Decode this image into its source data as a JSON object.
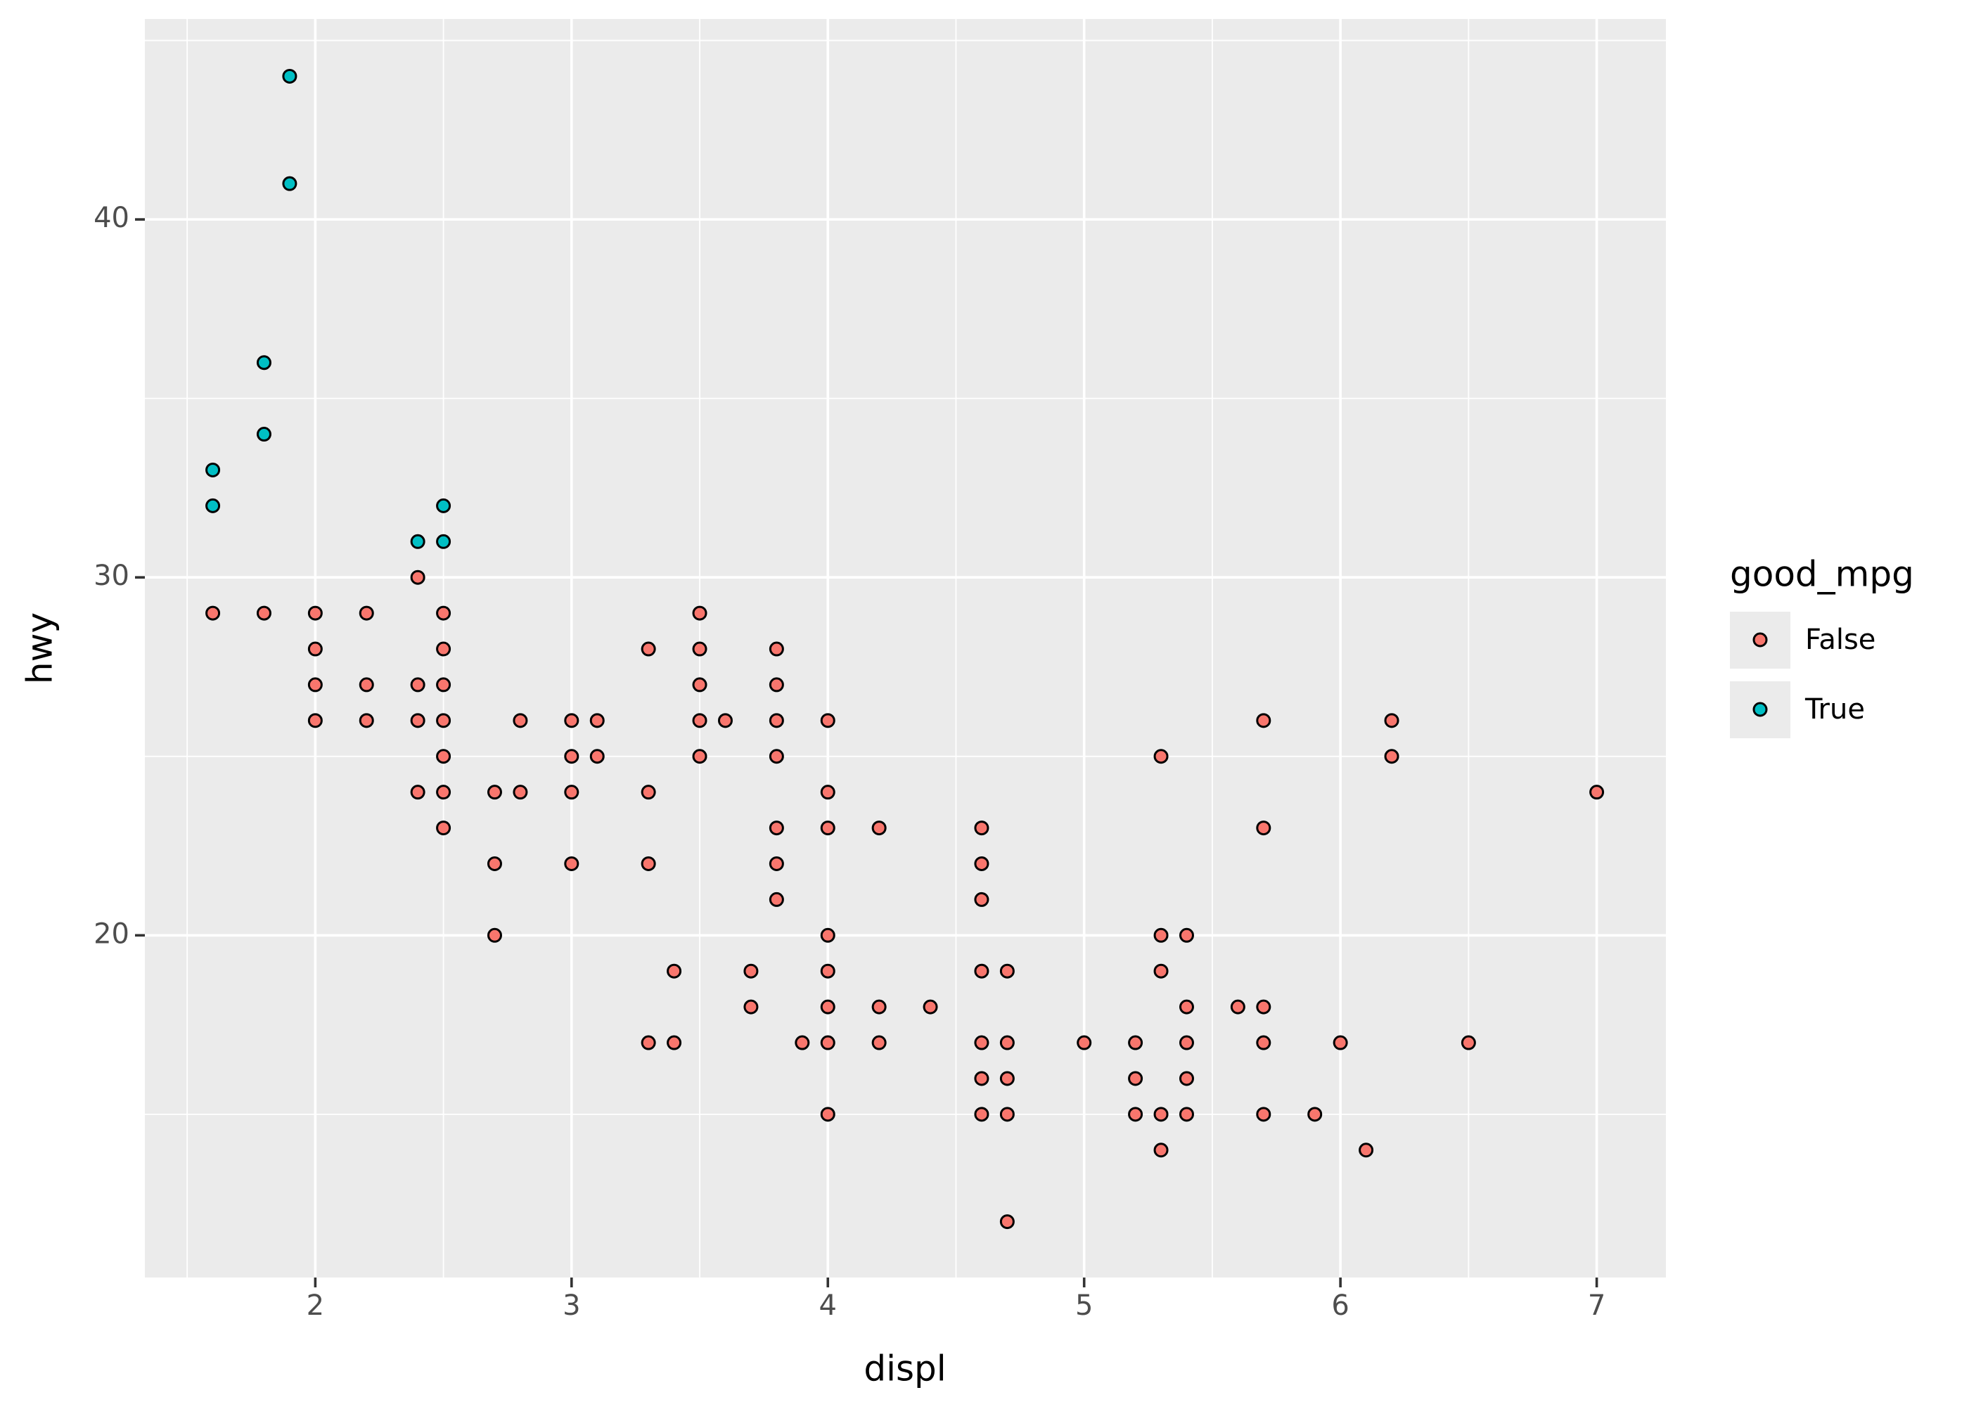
{
  "chart_data": {
    "type": "scatter",
    "x_label": "displ",
    "y_label": "hwy",
    "legend_title": "good_mpg",
    "xlim": [
      1.335,
      7.27
    ],
    "ylim": [
      10.44,
      45.6
    ],
    "xticks": [
      2,
      3,
      4,
      5,
      6,
      7
    ],
    "yticks": [
      20,
      30,
      40
    ],
    "minor_xticks": [
      1.5,
      2.5,
      3.5,
      4.5,
      5.5,
      6.5
    ],
    "minor_yticks": [
      15,
      25,
      35,
      45
    ],
    "grid": true,
    "legend": "right",
    "series": [
      {
        "name": "False",
        "color": "#F8766D",
        "x": [
          1.6,
          1.8,
          2.0,
          2.0,
          2.0,
          2.0,
          2.2,
          2.2,
          2.2,
          2.4,
          2.4,
          2.4,
          2.4,
          2.5,
          2.5,
          2.5,
          2.5,
          2.5,
          2.5,
          2.5,
          2.7,
          2.7,
          2.7,
          2.8,
          2.8,
          3.0,
          3.0,
          3.0,
          3.0,
          3.1,
          3.1,
          3.3,
          3.3,
          3.3,
          3.3,
          3.4,
          3.4,
          3.5,
          3.5,
          3.5,
          3.5,
          3.5,
          3.6,
          3.7,
          3.7,
          3.8,
          3.8,
          3.8,
          3.8,
          3.8,
          3.8,
          3.8,
          3.9,
          4.0,
          4.0,
          4.0,
          4.0,
          4.0,
          4.0,
          4.0,
          4.0,
          4.2,
          4.2,
          4.2,
          4.4,
          4.6,
          4.6,
          4.6,
          4.6,
          4.6,
          4.6,
          4.6,
          4.7,
          4.7,
          4.7,
          4.7,
          4.7,
          5.0,
          5.2,
          5.2,
          5.2,
          5.3,
          5.3,
          5.3,
          5.3,
          5.3,
          5.4,
          5.4,
          5.4,
          5.4,
          5.4,
          5.6,
          5.7,
          5.7,
          5.7,
          5.7,
          5.7,
          5.9,
          6.0,
          6.1,
          6.2,
          6.2,
          6.5,
          7.0
        ],
        "y": [
          29,
          29,
          29,
          28,
          27,
          26,
          29,
          27,
          26,
          30,
          27,
          26,
          24,
          29,
          28,
          27,
          26,
          25,
          24,
          23,
          24,
          22,
          20,
          26,
          24,
          26,
          25,
          24,
          22,
          26,
          25,
          28,
          24,
          22,
          17,
          19,
          17,
          29,
          28,
          27,
          26,
          25,
          26,
          19,
          18,
          28,
          27,
          26,
          25,
          23,
          22,
          21,
          17,
          26,
          24,
          23,
          20,
          19,
          18,
          17,
          15,
          23,
          18,
          17,
          18,
          23,
          22,
          21,
          19,
          17,
          16,
          15,
          19,
          17,
          16,
          15,
          12,
          17,
          17,
          16,
          15,
          25,
          20,
          19,
          15,
          14,
          20,
          18,
          17,
          16,
          15,
          18,
          26,
          23,
          18,
          17,
          15,
          15,
          17,
          14,
          26,
          25,
          17,
          24
        ]
      },
      {
        "name": "True",
        "color": "#00BFC4",
        "x": [
          1.9,
          1.9,
          1.8,
          1.8,
          1.6,
          1.6,
          2.4,
          2.5,
          2.5
        ],
        "y": [
          44,
          41,
          36,
          34,
          33,
          32,
          31,
          32,
          31
        ]
      }
    ]
  }
}
